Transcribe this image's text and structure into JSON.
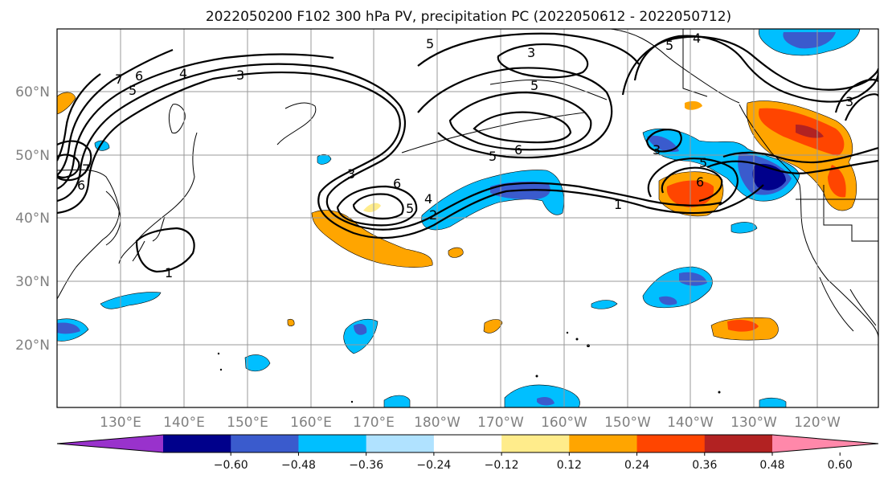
{
  "title": "2022050200 F102 300 hPa PV, precipitation PC (2022050612 - 2022050712)",
  "lat_labels": [
    "60°N",
    "50°N",
    "40°N",
    "30°N",
    "20°N"
  ],
  "lon_labels": [
    "130°E",
    "140°E",
    "150°E",
    "160°E",
    "170°E",
    "180°W",
    "170°W",
    "160°W",
    "150°W",
    "140°W",
    "130°W",
    "120°W"
  ],
  "colorbar": {
    "ticks": [
      "−0.60",
      "−0.48",
      "−0.36",
      "−0.24",
      "−0.12",
      "0.12",
      "0.24",
      "0.36",
      "0.48",
      "0.60"
    ],
    "colors": [
      "#9932cc",
      "#00008b",
      "#3a5bcd",
      "#00bfff",
      "#b0e2ff",
      "#ffffff",
      "#ffec8b",
      "#ffa500",
      "#ff4500",
      "#b22222",
      "#ff88aa"
    ]
  },
  "contour_labels": [
    "7",
    "6",
    "5",
    "4",
    "3",
    "5",
    "3",
    "5",
    "6",
    "5",
    "4",
    "3",
    "7",
    "6",
    "3",
    "6",
    "5",
    "4",
    "2",
    "1",
    "3",
    "5",
    "6",
    "1",
    "5",
    "2"
  ],
  "shading_colors": {
    "light_blue": "#00bfff",
    "mid_blue": "#3a5bcd",
    "dark_blue": "#00008b",
    "yellow": "#ffec8b",
    "orange": "#ffa500",
    "red_orange": "#ff4500",
    "dark_red": "#b22222"
  }
}
